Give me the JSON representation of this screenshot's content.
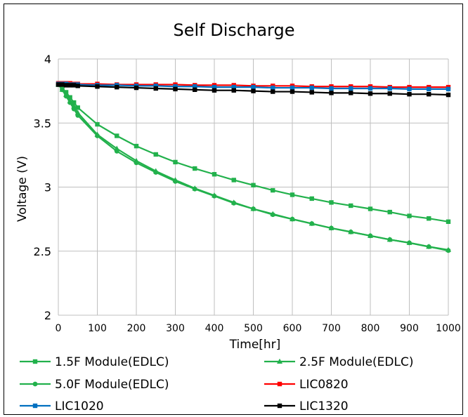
{
  "chart_data": {
    "type": "line",
    "title": "Self Discharge",
    "xlabel": "Time[hr]",
    "ylabel": "Voltage (V)",
    "xlim": [
      0,
      1000
    ],
    "ylim": [
      2,
      4
    ],
    "x_ticks": [
      0,
      100,
      200,
      300,
      400,
      500,
      600,
      700,
      800,
      900,
      1000
    ],
    "y_ticks": [
      2,
      2.5,
      3,
      3.5,
      4
    ],
    "x_tick_labels": [
      "0",
      "100",
      "200",
      "300",
      "400",
      "500",
      "600",
      "700",
      "800",
      "900",
      "1000"
    ],
    "y_tick_labels": [
      "2",
      "2.5",
      "3",
      "3.5",
      "4"
    ],
    "grid": true,
    "legend_position": "bottom",
    "series": [
      {
        "name": "1.5F Module(EDLC)",
        "color": "#22b14c",
        "marker": "square",
        "x": [
          0,
          10,
          20,
          30,
          40,
          50,
          100,
          150,
          200,
          250,
          300,
          350,
          400,
          450,
          500,
          550,
          600,
          650,
          700,
          750,
          800,
          850,
          900,
          950,
          1000
        ],
        "y": [
          3.8,
          3.77,
          3.74,
          3.7,
          3.66,
          3.62,
          3.49,
          3.4,
          3.32,
          3.255,
          3.195,
          3.145,
          3.1,
          3.055,
          3.015,
          2.975,
          2.94,
          2.91,
          2.88,
          2.855,
          2.83,
          2.805,
          2.775,
          2.755,
          2.73
        ]
      },
      {
        "name": "2.5F Module(EDLC)",
        "color": "#22b14c",
        "marker": "triangle",
        "x": [
          0,
          10,
          20,
          30,
          40,
          50,
          100,
          150,
          200,
          250,
          300,
          350,
          400,
          450,
          500,
          550,
          600,
          650,
          700,
          750,
          800,
          850,
          900,
          950,
          1000
        ],
        "y": [
          3.8,
          3.76,
          3.72,
          3.67,
          3.63,
          3.58,
          3.41,
          3.3,
          3.205,
          3.125,
          3.055,
          2.99,
          2.935,
          2.88,
          2.83,
          2.79,
          2.75,
          2.715,
          2.68,
          2.65,
          2.62,
          2.59,
          2.565,
          2.535,
          2.51
        ]
      },
      {
        "name": "5.0F Module(EDLC)",
        "color": "#22b14c",
        "marker": "circle",
        "x": [
          0,
          10,
          20,
          30,
          40,
          50,
          100,
          150,
          200,
          250,
          300,
          350,
          400,
          450,
          500,
          550,
          600,
          650,
          700,
          750,
          800,
          850,
          900,
          950,
          1000
        ],
        "y": [
          3.8,
          3.76,
          3.71,
          3.66,
          3.61,
          3.56,
          3.4,
          3.28,
          3.19,
          3.115,
          3.045,
          2.985,
          2.93,
          2.875,
          2.83,
          2.785,
          2.75,
          2.715,
          2.68,
          2.65,
          2.62,
          2.59,
          2.565,
          2.535,
          2.505
        ]
      },
      {
        "name": "LIC0820",
        "color": "#ff0000",
        "marker": "square",
        "x": [
          0,
          10,
          20,
          30,
          40,
          50,
          100,
          150,
          200,
          250,
          300,
          350,
          400,
          450,
          500,
          550,
          600,
          650,
          700,
          750,
          800,
          850,
          900,
          950,
          1000
        ],
        "y": [
          3.81,
          3.81,
          3.81,
          3.81,
          3.805,
          3.805,
          3.805,
          3.8,
          3.8,
          3.8,
          3.8,
          3.795,
          3.795,
          3.795,
          3.79,
          3.79,
          3.79,
          3.785,
          3.785,
          3.785,
          3.785,
          3.78,
          3.78,
          3.78,
          3.78
        ]
      },
      {
        "name": "LIC1020",
        "color": "#0070c0",
        "marker": "square",
        "x": [
          0,
          10,
          20,
          30,
          40,
          50,
          100,
          150,
          200,
          250,
          300,
          350,
          400,
          450,
          500,
          550,
          600,
          650,
          700,
          750,
          800,
          850,
          900,
          950,
          1000
        ],
        "y": [
          3.805,
          3.805,
          3.805,
          3.8,
          3.8,
          3.8,
          3.795,
          3.795,
          3.79,
          3.79,
          3.785,
          3.785,
          3.78,
          3.78,
          3.78,
          3.775,
          3.775,
          3.775,
          3.77,
          3.77,
          3.77,
          3.77,
          3.765,
          3.765,
          3.765
        ]
      },
      {
        "name": "LIC1320",
        "color": "#000000",
        "marker": "square",
        "x": [
          0,
          10,
          20,
          30,
          40,
          50,
          100,
          150,
          200,
          250,
          300,
          350,
          400,
          450,
          500,
          550,
          600,
          650,
          700,
          750,
          800,
          850,
          900,
          950,
          1000
        ],
        "y": [
          3.8,
          3.8,
          3.795,
          3.795,
          3.795,
          3.79,
          3.785,
          3.78,
          3.775,
          3.77,
          3.765,
          3.76,
          3.755,
          3.755,
          3.75,
          3.745,
          3.745,
          3.74,
          3.735,
          3.735,
          3.73,
          3.73,
          3.725,
          3.725,
          3.72
        ]
      }
    ]
  }
}
